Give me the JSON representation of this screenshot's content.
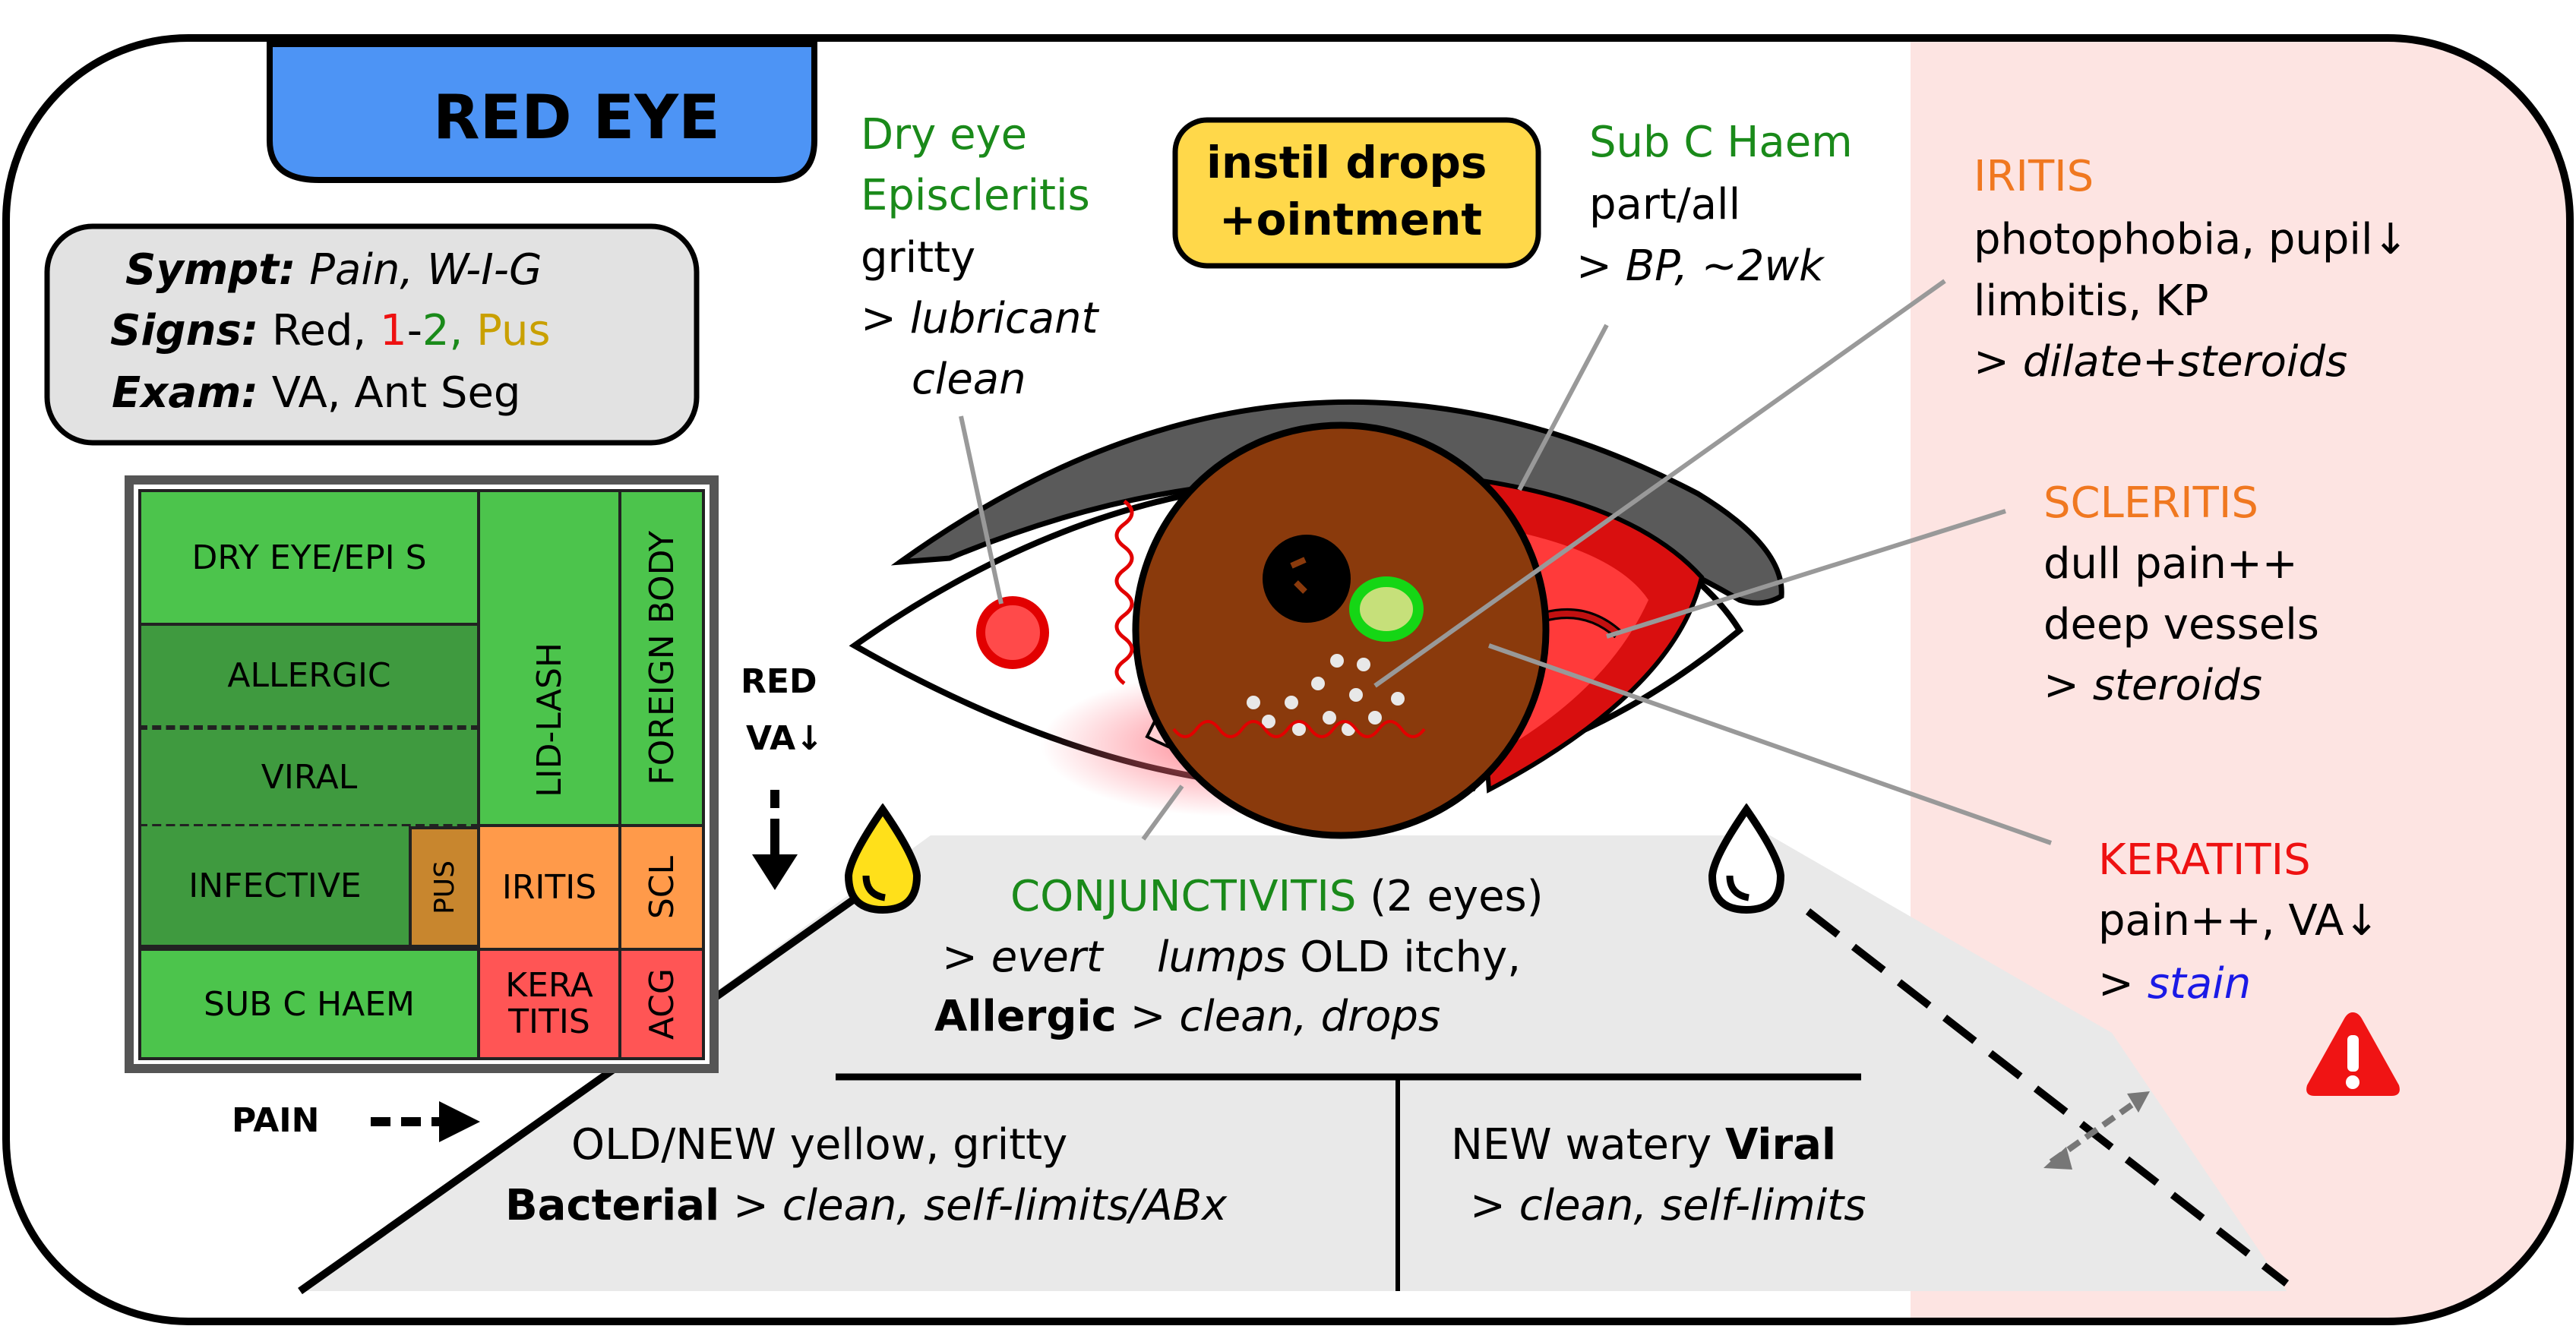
{
  "title": "RED EYE",
  "summary": {
    "sympt_label": "Sympt:",
    "sympt_value": "Pain, W-I-G",
    "signs_label": "Signs:",
    "signs_red": "Red,",
    "signs_1": "1",
    "signs_dash": "-",
    "signs_2": "2,",
    "signs_pus": "Pus",
    "exam_label": "Exam:",
    "exam_value": "VA, Ant Seg"
  },
  "grid": {
    "dry_eye": "DRY EYE/EPI S",
    "allergic": "ALLERGIC",
    "viral": "VIRAL",
    "infective": "INFECTIVE",
    "pus": "PUS",
    "lid_lash": "LID-LASH",
    "foreign_body": "FOREIGN BODY",
    "iritis": "IRITIS",
    "scl": "SCL",
    "sub_c_haem": "SUB C HAEM",
    "keratitis_1": "KERA",
    "keratitis_2": "TITIS",
    "acg": "ACG"
  },
  "axes": {
    "red": "RED",
    "va": "VA↓",
    "pain": "PAIN"
  },
  "dry_eye": {
    "title1": "Dry eye",
    "title2": "Episcleritis",
    "line1": "gritty",
    "line2": "> lubricant",
    "line3": "clean"
  },
  "instil": {
    "line1": "instil drops",
    "line2": "+ointment"
  },
  "sub_c": {
    "title": "Sub C Haem",
    "line1": "part/all",
    "line2": "> BP, ~2wk"
  },
  "iritis": {
    "title": "IRITIS",
    "line1": "photophobia, pupil↓",
    "line2": "limbitis, KP",
    "line3": "> dilate+steroids"
  },
  "scleritis": {
    "title": "SCLERITIS",
    "line1": "dull pain++",
    "line2": "deep vessels",
    "line3_prefix": "> ",
    "line3": "steroids"
  },
  "keratitis": {
    "title": "KERATITIS",
    "line1": "pain++, VA↓",
    "line2_prefix": "> ",
    "line2": "stain"
  },
  "conjunctivitis": {
    "title": "CONJUNCTIVITIS",
    "title_suffix": "(2 eyes)",
    "line1a": "> evert",
    "line1b": "lumps",
    "line1c": "OLD itchy,",
    "line2a": "Allergic",
    "line2b": ">",
    "line2c": "clean, drops"
  },
  "bacterial": {
    "line1": "OLD/NEW yellow, gritty",
    "label": "Bacterial",
    "gt": ">",
    "line2": "clean, self-limits/ABx"
  },
  "viral": {
    "line1a": "NEW watery",
    "line1b": "Viral",
    "line2": "> clean, self-limits"
  },
  "colors": {
    "title_tab": "#4d94f5",
    "instil_bg": "#ffd84a",
    "danger_panel": "#fde4e2",
    "green_cell": "#4cc44c",
    "dark_green_cell": "#3f9a3f",
    "orange_cell": "#ff9a4a",
    "red_cell": "#ff5555",
    "brown_cell": "#c8862e",
    "iris": "#8a3a0c"
  },
  "icons": {
    "warning": "warning-triangle-icon",
    "yellow_drop": "yellow-drop-icon",
    "clear_drop": "clear-drop-icon"
  }
}
